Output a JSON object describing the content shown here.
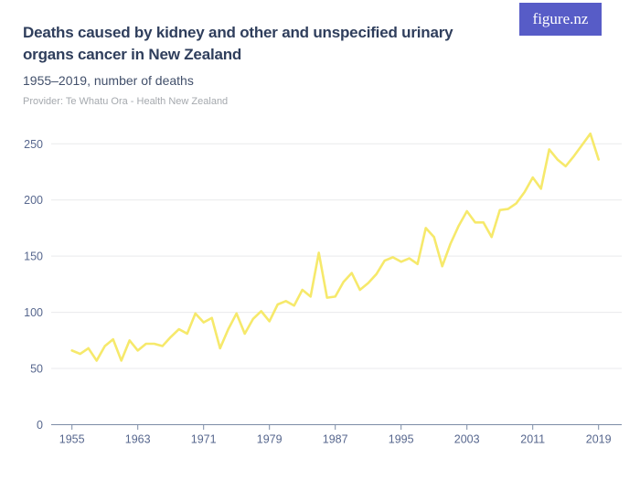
{
  "header": {
    "title_lines": {
      "0": "Deaths caused by kidney and other and unspecified urinary",
      "1": "organs cancer in New Zealand"
    },
    "subtitle": "1955–2019, number of deaths",
    "provider": "Provider: Te Whatu Ora - Health New Zealand",
    "logo_text": "figure.nz"
  },
  "colors": {
    "accent": "#575CC7",
    "line": "#F6E96B",
    "title": "#2F3E5C",
    "subtitle": "#42506B",
    "provider": "#A5A9AE",
    "axis_label": "#57678E",
    "gridline": "#E9EAEC",
    "axis_line": "#7C8CA6"
  },
  "chart_data": {
    "type": "line",
    "title": "Deaths caused by kidney and other and unspecified urinary organs cancer in New Zealand",
    "subtitle": "1955–2019, number of deaths",
    "series_name": "Number of deaths",
    "x": [
      1955,
      1956,
      1957,
      1958,
      1959,
      1960,
      1961,
      1962,
      1963,
      1964,
      1965,
      1966,
      1967,
      1968,
      1969,
      1970,
      1971,
      1972,
      1973,
      1974,
      1975,
      1976,
      1977,
      1978,
      1979,
      1980,
      1981,
      1982,
      1983,
      1984,
      1985,
      1986,
      1987,
      1988,
      1989,
      1990,
      1991,
      1992,
      1993,
      1994,
      1995,
      1996,
      1997,
      1998,
      1999,
      2000,
      2001,
      2002,
      2003,
      2004,
      2005,
      2006,
      2007,
      2008,
      2009,
      2010,
      2011,
      2012,
      2013,
      2014,
      2015,
      2016,
      2017,
      2018,
      2019
    ],
    "values": [
      66,
      63,
      68,
      57,
      70,
      76,
      57,
      75,
      66,
      72,
      72,
      70,
      78,
      85,
      81,
      99,
      91,
      95,
      68,
      85,
      99,
      81,
      94,
      101,
      92,
      107,
      110,
      106,
      120,
      114,
      153,
      113,
      114,
      127,
      135,
      120,
      126,
      134,
      146,
      149,
      145,
      148,
      143,
      175,
      167,
      141,
      161,
      177,
      190,
      180,
      180,
      167,
      191,
      192,
      197,
      207,
      220,
      210,
      245,
      236,
      230,
      239,
      249,
      259,
      236
    ],
    "xticks": [
      1955,
      1963,
      1971,
      1979,
      1987,
      1995,
      2003,
      2011,
      2019
    ],
    "yticks": [
      0,
      50,
      100,
      150,
      200,
      250
    ],
    "xlabel": "",
    "ylabel": "",
    "ylim": [
      0,
      265
    ],
    "grid": "horizontal",
    "legend": "none",
    "line_color": "#F6E96B"
  }
}
